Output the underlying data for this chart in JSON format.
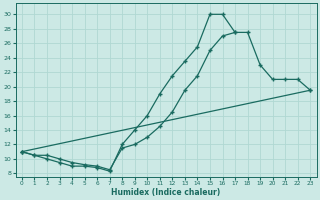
{
  "xlabel": "Humidex (Indice chaleur)",
  "bg_color": "#cce9e5",
  "grid_color": "#b0d8d3",
  "line_color": "#1a6b60",
  "xlim": [
    -0.5,
    23.5
  ],
  "ylim": [
    7.5,
    31.5
  ],
  "yticks": [
    8,
    10,
    12,
    14,
    16,
    18,
    20,
    22,
    24,
    26,
    28,
    30
  ],
  "xticks": [
    0,
    1,
    2,
    3,
    4,
    5,
    6,
    7,
    8,
    9,
    10,
    11,
    12,
    13,
    14,
    15,
    16,
    17,
    18,
    19,
    20,
    21,
    22,
    23
  ],
  "line1_x": [
    0,
    1,
    2,
    3,
    4,
    5,
    6,
    7,
    8,
    9,
    10,
    11,
    12,
    13,
    14,
    15,
    16,
    17
  ],
  "line1_y": [
    11.0,
    10.5,
    10.0,
    9.5,
    9.0,
    9.0,
    8.8,
    8.3,
    12.0,
    14.0,
    16.0,
    19.0,
    21.5,
    23.5,
    25.5,
    30.0,
    30.0,
    27.5
  ],
  "line2_x": [
    0,
    23
  ],
  "line2_y": [
    11.0,
    19.5
  ],
  "line3_x": [
    0,
    1,
    2,
    3,
    4,
    5,
    6,
    7,
    8,
    9,
    10,
    11,
    12,
    13,
    14,
    15,
    16,
    17,
    18,
    19,
    20,
    21,
    22,
    23
  ],
  "line3_y": [
    11.0,
    10.5,
    10.5,
    10.0,
    9.5,
    9.2,
    9.0,
    8.5,
    11.5,
    12.0,
    13.0,
    14.5,
    16.5,
    19.5,
    21.5,
    25.0,
    27.0,
    27.5,
    27.5,
    23.0,
    21.0,
    21.0,
    21.0,
    19.5
  ]
}
